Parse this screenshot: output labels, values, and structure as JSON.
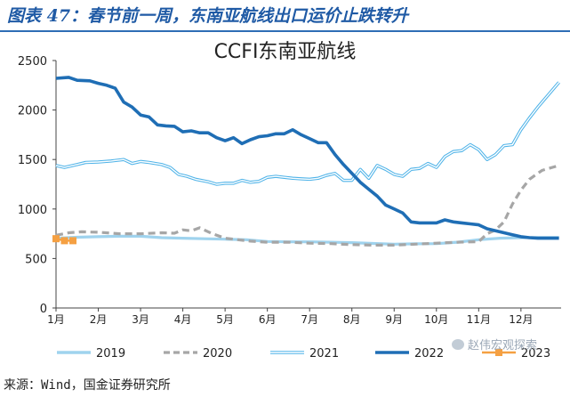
{
  "header": {
    "title": "图表 47：春节前一周，东南亚航线出口运价止跌转升"
  },
  "footer": {
    "source": "来源：Wind，国金证券研究所"
  },
  "watermark": {
    "text": "赵伟宏观探索"
  },
  "chart_data": {
    "type": "line",
    "title": "CCFI东南亚航线",
    "xlabel": "",
    "ylabel": "",
    "ylim": [
      0,
      2500
    ],
    "yticks": [
      0,
      500,
      1000,
      1500,
      2000,
      2500
    ],
    "xlim": [
      1,
      12.95
    ],
    "month_labels": [
      "1月",
      "2月",
      "3月",
      "4月",
      "5月",
      "6月",
      "7月",
      "8月",
      "9月",
      "10月",
      "11月",
      "12月"
    ],
    "legend_position": "bottom",
    "grid": false,
    "series": [
      {
        "name": "2019",
        "color": "#9fd3ee",
        "style": "solid",
        "x": [
          1.0,
          1.5,
          2.0,
          2.5,
          3.0,
          3.5,
          4.0,
          4.5,
          5.0,
          5.5,
          6.0,
          6.5,
          7.0,
          7.5,
          8.0,
          8.5,
          9.0,
          9.5,
          10.0,
          10.5,
          11.0,
          11.5,
          12.0,
          12.5,
          12.9
        ],
        "y": [
          705,
          715,
          720,
          725,
          725,
          710,
          705,
          700,
          695,
          690,
          672,
          668,
          668,
          665,
          660,
          652,
          645,
          648,
          650,
          665,
          690,
          705,
          710,
          712,
          712
        ]
      },
      {
        "name": "2020",
        "color": "#a6a6a6",
        "style": "dash",
        "x": [
          1.0,
          1.3,
          1.6,
          2.0,
          2.5,
          3.0,
          3.5,
          3.8,
          4.0,
          4.2,
          4.4,
          4.7,
          5.0,
          5.3,
          5.6,
          6.0,
          6.5,
          7.0,
          7.5,
          8.0,
          8.5,
          9.0,
          9.5,
          10.0,
          10.5,
          11.0,
          11.2,
          11.4,
          11.6,
          11.8,
          12.0,
          12.2,
          12.5,
          12.9
        ],
        "y": [
          735,
          760,
          770,
          765,
          750,
          750,
          760,
          755,
          790,
          780,
          810,
          750,
          705,
          690,
          675,
          665,
          665,
          655,
          650,
          640,
          635,
          635,
          645,
          655,
          665,
          670,
          750,
          790,
          870,
          1050,
          1190,
          1300,
          1390,
          1440
        ]
      },
      {
        "name": "2021",
        "color": "#4fb3e8",
        "style": "double",
        "x": [
          1.0,
          1.2,
          1.5,
          1.7,
          2.0,
          2.3,
          2.6,
          2.8,
          3.0,
          3.2,
          3.5,
          3.7,
          3.9,
          4.1,
          4.3,
          4.6,
          4.8,
          5.0,
          5.2,
          5.4,
          5.6,
          5.8,
          6.0,
          6.2,
          6.4,
          6.6,
          6.8,
          7.0,
          7.2,
          7.4,
          7.6,
          7.8,
          8.0,
          8.2,
          8.4,
          8.6,
          8.8,
          9.0,
          9.2,
          9.4,
          9.6,
          9.8,
          10.0,
          10.2,
          10.4,
          10.6,
          10.8,
          11.0,
          11.2,
          11.4,
          11.6,
          11.8,
          12.0,
          12.2,
          12.4,
          12.6,
          12.8,
          12.9
        ],
        "y": [
          1440,
          1420,
          1450,
          1470,
          1475,
          1485,
          1500,
          1460,
          1480,
          1470,
          1450,
          1420,
          1350,
          1330,
          1300,
          1275,
          1250,
          1260,
          1260,
          1290,
          1270,
          1280,
          1320,
          1330,
          1320,
          1310,
          1305,
          1300,
          1310,
          1340,
          1360,
          1290,
          1290,
          1400,
          1310,
          1440,
          1400,
          1350,
          1330,
          1400,
          1410,
          1460,
          1420,
          1530,
          1580,
          1590,
          1650,
          1600,
          1500,
          1550,
          1640,
          1650,
          1800,
          1920,
          2030,
          2130,
          2230,
          2280
        ]
      },
      {
        "name": "2022",
        "color": "#1f6eb5",
        "style": "solid",
        "x": [
          1.0,
          1.3,
          1.5,
          1.8,
          2.0,
          2.2,
          2.4,
          2.6,
          2.8,
          3.0,
          3.2,
          3.4,
          3.6,
          3.8,
          4.0,
          4.2,
          4.4,
          4.6,
          4.8,
          5.0,
          5.2,
          5.4,
          5.6,
          5.8,
          6.0,
          6.2,
          6.4,
          6.6,
          6.8,
          7.0,
          7.2,
          7.4,
          7.6,
          7.8,
          8.0,
          8.2,
          8.4,
          8.6,
          8.8,
          9.0,
          9.2,
          9.4,
          9.6,
          9.8,
          10.0,
          10.2,
          10.4,
          10.6,
          10.8,
          11.0,
          11.2,
          11.4,
          11.6,
          11.8,
          12.0,
          12.2,
          12.4,
          12.6,
          12.9
        ],
        "y": [
          2320,
          2330,
          2300,
          2295,
          2270,
          2250,
          2220,
          2080,
          2030,
          1950,
          1930,
          1850,
          1840,
          1835,
          1780,
          1790,
          1770,
          1770,
          1720,
          1690,
          1720,
          1660,
          1700,
          1730,
          1740,
          1760,
          1760,
          1800,
          1750,
          1710,
          1670,
          1670,
          1550,
          1450,
          1360,
          1270,
          1200,
          1130,
          1040,
          1000,
          960,
          870,
          860,
          860,
          860,
          890,
          870,
          860,
          850,
          840,
          800,
          780,
          760,
          740,
          720,
          710,
          705,
          705,
          705
        ]
      },
      {
        "name": "2023",
        "color": "#f5a042",
        "style": "markers",
        "x": [
          1.0,
          1.2,
          1.4
        ],
        "y": [
          700,
          680,
          680
        ]
      }
    ]
  }
}
